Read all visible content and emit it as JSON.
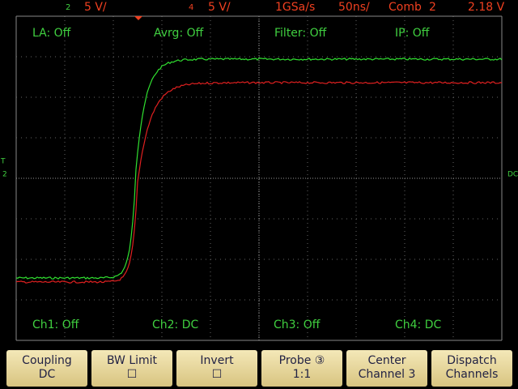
{
  "status_bar": {
    "ch2_number": "2",
    "ch2_scale": "5 V/",
    "ch4_number": "4",
    "ch4_scale": "5 V/",
    "sample_rate": "1GSa/s",
    "timebase": "50ns/",
    "trigger_mode": "Comb",
    "trigger_source": "2",
    "trigger_level": "2.18 V"
  },
  "top_labels": [
    "LA: Off",
    "Avrg: Off",
    "Filter: Off",
    "IP: Off"
  ],
  "bottom_labels": [
    "Ch1: Off",
    "Ch2: DC",
    "Ch3: Off",
    "Ch4: DC"
  ],
  "side_markers": {
    "trigger": "T",
    "channel": "2",
    "coupling": "DC"
  },
  "softkeys": [
    {
      "line1": "Coupling",
      "line2": "DC"
    },
    {
      "line1": "BW Limit",
      "line2": "☐"
    },
    {
      "line1": "Invert",
      "line2": "☐"
    },
    {
      "line1": "Probe ③",
      "line2": "1:1"
    },
    {
      "line1": "Center",
      "line2": "Channel 3"
    },
    {
      "line1": "Dispatch",
      "line2": "Channels"
    }
  ]
}
